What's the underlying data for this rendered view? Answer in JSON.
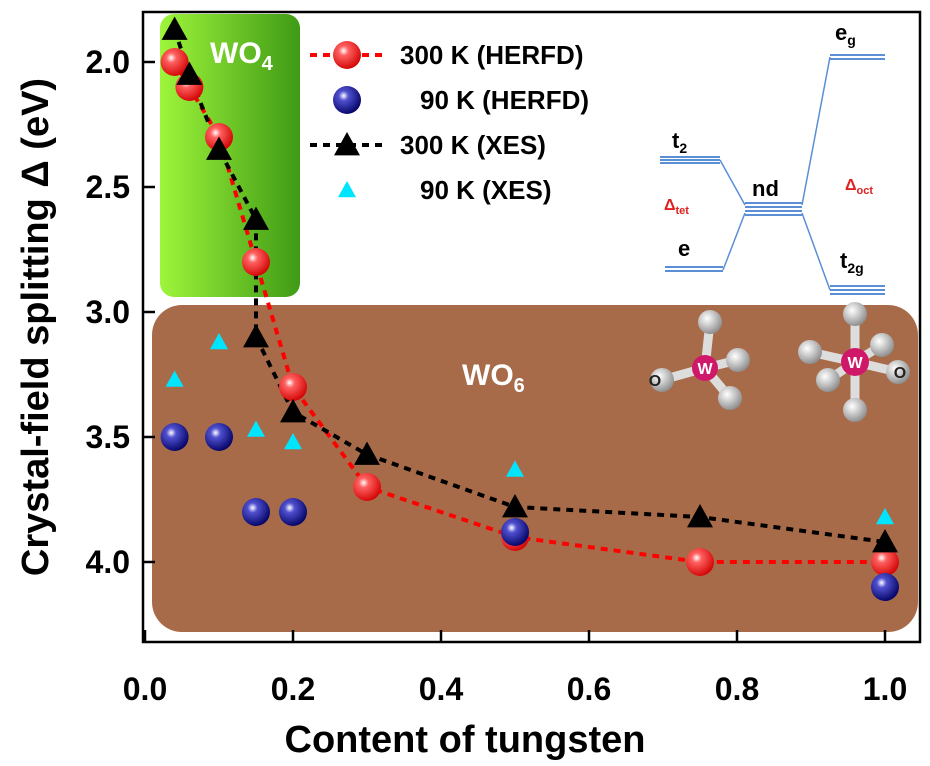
{
  "chart_data": {
    "type": "scatter",
    "xlabel": "Content of tungsten",
    "ylabel": "Crystal-field splitting Δ (eV)",
    "xlim": [
      0,
      1.05
    ],
    "ylim": [
      1.8,
      4.3
    ],
    "invert_y": true,
    "xticks": [
      {
        "value": 0,
        "label": "0.0"
      },
      0.2,
      0.4,
      0.6,
      0.8,
      {
        "value": 1,
        "label": "1.0"
      }
    ],
    "yticks": [
      {
        "value": 2,
        "label": "2.0"
      },
      2.5,
      {
        "value": 3,
        "label": "3.0"
      },
      3.5,
      {
        "value": 4,
        "label": "4.0"
      }
    ],
    "series": [
      {
        "name": "300 K (HERFD)",
        "color": "#ff0000",
        "marker": "sphere",
        "line": true,
        "x": [
          0.04,
          0.06,
          0.1,
          0.15,
          0.2,
          0.3,
          0.5,
          0.75,
          1.0
        ],
        "values": [
          2.0,
          2.1,
          2.3,
          2.8,
          3.3,
          3.7,
          3.9,
          4.0,
          4.0
        ]
      },
      {
        "name": "90 K (HERFD)",
        "color": "#10109a",
        "marker": "sphere",
        "line": false,
        "x": [
          0.04,
          0.1,
          0.15,
          0.2,
          0.5,
          1.0
        ],
        "values": [
          3.5,
          3.5,
          3.8,
          3.8,
          3.88,
          4.1
        ]
      },
      {
        "name": "300 K (XES)",
        "color": "#000000",
        "marker": "triangle",
        "line": true,
        "x": [
          0.04,
          0.06,
          0.1,
          0.15,
          0.15,
          0.2,
          0.3,
          0.5,
          0.75,
          1.0
        ],
        "values": [
          1.87,
          2.05,
          2.35,
          2.63,
          3.1,
          3.4,
          3.57,
          3.78,
          3.82,
          3.92
        ]
      },
      {
        "name": "90 K (XES)",
        "color": "#00e5ff",
        "marker": "small-triangle",
        "line": false,
        "x": [
          0.04,
          0.1,
          0.15,
          0.2,
          0.5,
          1.0
        ],
        "values": [
          3.27,
          3.12,
          3.47,
          3.52,
          3.63,
          3.82
        ]
      }
    ],
    "annotations": [
      {
        "text": "WO",
        "sub": "4"
      },
      {
        "text": "WO",
        "sub": "6"
      }
    ],
    "inset": {
      "labels": [
        {
          "text": "t",
          "sub": "2"
        },
        {
          "text": "nd"
        },
        {
          "text": "e"
        },
        {
          "text": "e",
          "sub": "g"
        },
        {
          "text": "t",
          "sub": "2g"
        },
        {
          "text": "Δ",
          "sub": "tet"
        },
        {
          "text": "Δ",
          "sub": "oct"
        }
      ],
      "atoms": [
        "W",
        "O",
        "W",
        "O"
      ]
    }
  }
}
